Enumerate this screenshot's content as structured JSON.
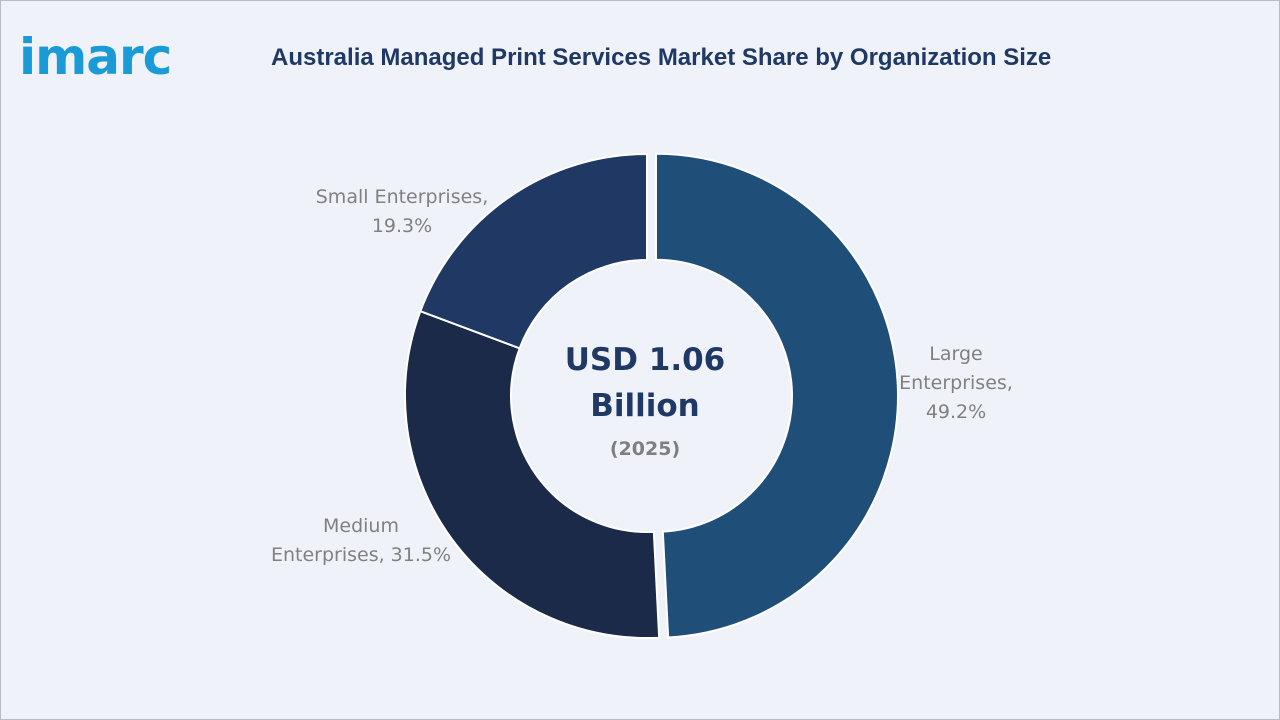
{
  "brand": {
    "logo_text": "imarc",
    "logo_color": "#1a9ad7"
  },
  "title": "Australia Managed Print Services Market Share by Organization Size",
  "chart_data": {
    "type": "pie",
    "donut": true,
    "title": "Australia Managed Print Services Market Share by Organization Size",
    "center": {
      "value_line1": "USD 1.06",
      "value_line2": "Billion",
      "year": "(2025)"
    },
    "slices": [
      {
        "name": "Large Enterprises",
        "value": 49.2,
        "label_lines": [
          "Large",
          "Enterprises,",
          "49.2%"
        ],
        "color": "#1f4e79",
        "exploded": true
      },
      {
        "name": "Medium Enterprises",
        "value": 31.5,
        "label_lines": [
          "Medium",
          "Enterprises, 31.5%"
        ],
        "color": "#1b2a48"
      },
      {
        "name": "Small Enterprises",
        "value": 19.3,
        "label_lines": [
          "Small Enterprises,",
          "19.3%"
        ],
        "color": "#203864"
      }
    ],
    "unit": "%"
  }
}
